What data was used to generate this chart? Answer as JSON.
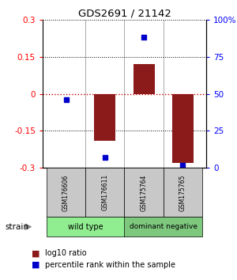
{
  "title": "GDS2691 / 21142",
  "samples": [
    "GSM176606",
    "GSM176611",
    "GSM175764",
    "GSM175765"
  ],
  "group_label_1": "wild type",
  "group_label_2": "dominant negative",
  "group_color_1": "#90ee90",
  "group_color_2": "#7ec87e",
  "log10_ratio": [
    0.0,
    -0.19,
    0.12,
    -0.28
  ],
  "percentile_rank": [
    46,
    7,
    88,
    2
  ],
  "ylim_left": [
    -0.3,
    0.3
  ],
  "ylim_right": [
    0,
    100
  ],
  "yticks_left": [
    -0.3,
    -0.15,
    0,
    0.15,
    0.3
  ],
  "yticks_left_labels": [
    "-0.3",
    "-0.15",
    "0",
    "0.15",
    "0.3"
  ],
  "yticks_right": [
    0,
    25,
    50,
    75,
    100
  ],
  "yticks_right_labels": [
    "0",
    "25",
    "50",
    "75",
    "100%"
  ],
  "bar_color": "#8b1a1a",
  "dot_color": "#0000cc",
  "hline_color": "#cc0000",
  "dot_line_color": "#000000",
  "sample_box_color": "#c8c8c8",
  "strain_label": "strain",
  "legend_bar_label": "log10 ratio",
  "legend_dot_label": "percentile rank within the sample",
  "bar_width": 0.55
}
